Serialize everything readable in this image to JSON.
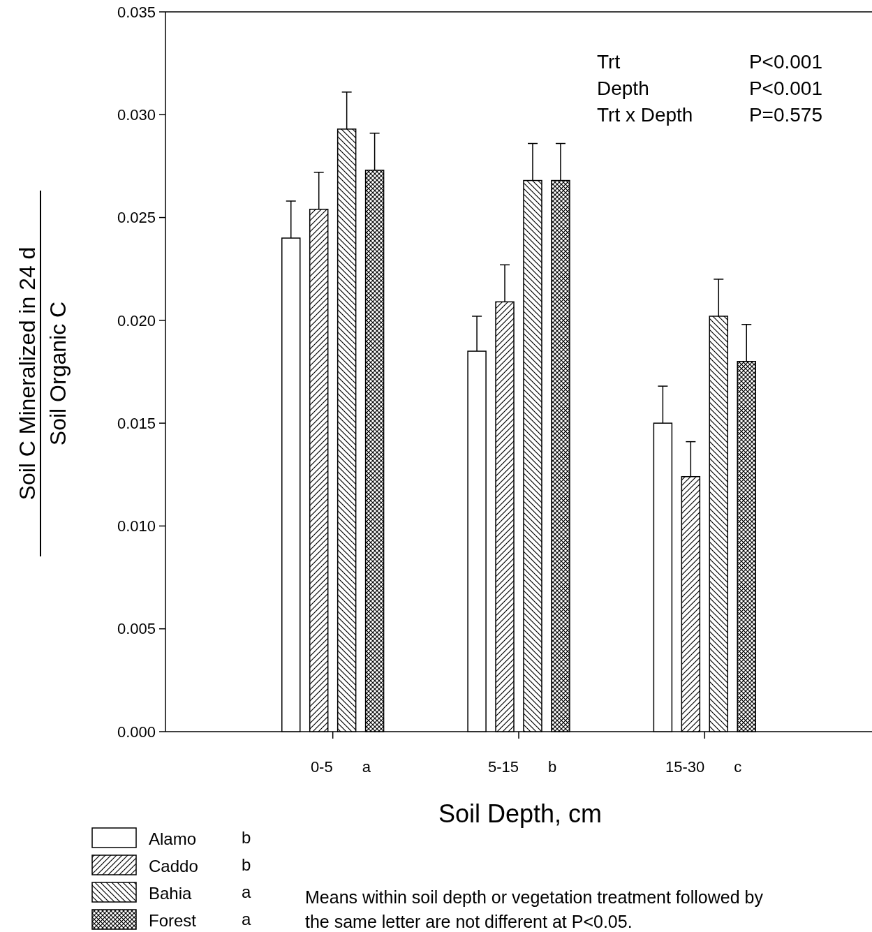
{
  "chart_data": {
    "type": "bar",
    "xlabel": "Soil Depth, cm",
    "ylabel": "Soil C Mineralized in 24 d",
    "categories": [
      "0-5",
      "5-15",
      "15-30"
    ],
    "series": [
      {
        "name": "Alamo",
        "color": "#ffffff",
        "values": [
          0.024,
          0.0185,
          0.015
        ],
        "errors": [
          0.0018,
          0.0017,
          0.0018
        ]
      },
      {
        "name": "Caddo",
        "color": "#000000",
        "values": [
          0.0254,
          0.0209,
          0.0124
        ],
        "errors": [
          0.0018,
          0.0018,
          0.0017
        ]
      },
      {
        "name": "Bahia",
        "color": "#000000",
        "values": [
          0.0293,
          0.0268,
          0.0202
        ],
        "errors": [
          0.0018,
          0.0018,
          0.0018
        ]
      },
      {
        "name": "Forest",
        "color": "#000000",
        "values": [
          0.0273,
          0.0268,
          0.018
        ],
        "errors": [
          0.0018,
          0.0018,
          0.0018
        ]
      }
    ],
    "ylim": [
      0,
      0.035
    ],
    "yticks": [
      {
        "value": 0,
        "label": "0.000"
      },
      0.005,
      {
        "value": 0.01,
        "label": "0.010"
      },
      0.015,
      {
        "value": 0.02,
        "label": "0.020"
      },
      0.025,
      {
        "value": 0.03,
        "label": "0.030"
      },
      0.035
    ],
    "legend": "bottom left",
    "grid": false,
    "annotations": [
      "Trt",
      "P<0.001",
      "Depth",
      "P<0.001",
      "Trt x Depth",
      "P=0.575",
      "a",
      "b",
      "c",
      "b",
      "b",
      "a",
      "a",
      "Means within soil depth or vegetation treatment followed by the same letter are not different at P<0.05.",
      "Soil Organic C"
    ]
  }
}
